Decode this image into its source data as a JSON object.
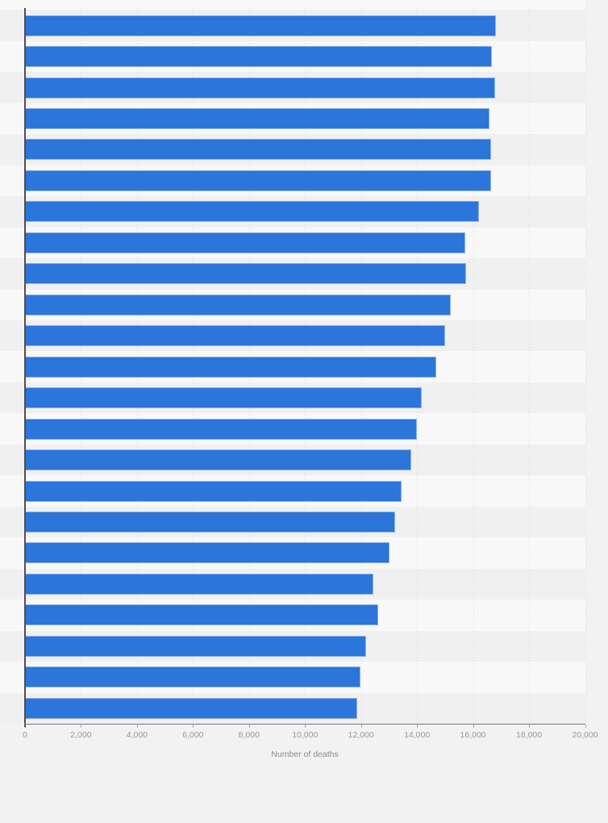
{
  "page": {
    "background_color": "#f2f2f2",
    "note": "Horizontal bar chart, category labels cropped out of view on the left"
  },
  "chart_data": {
    "type": "bar",
    "orientation": "horizontal",
    "title": "",
    "xlabel": "Number of deaths",
    "ylabel": "",
    "xlim": [
      0,
      20000
    ],
    "x_ticks": [
      0,
      2000,
      4000,
      6000,
      8000,
      10000,
      12000,
      14000,
      16000,
      18000,
      20000
    ],
    "x_tick_labels": [
      "0",
      "2,000",
      "4,000",
      "6,000",
      "8,000",
      "10,000",
      "12,000",
      "14,000",
      "16,000",
      "18,000",
      "20,000"
    ],
    "grid": "vertical-dotted",
    "legend": "none",
    "categories_visible": false,
    "values": [
      16810,
      16665,
      16780,
      16590,
      16635,
      16650,
      16225,
      15730,
      15755,
      15215,
      14995,
      14695,
      14180,
      14005,
      13805,
      13450,
      13220,
      13015,
      12440,
      12600,
      12185,
      11970,
      11865
    ],
    "colors": {
      "bar_fill": "#2b75db",
      "bar_border": "#8fb2e8",
      "stripe_odd": "#f0f0f0",
      "stripe_even": "#f8f8f8",
      "gridline": "#d7d7d7",
      "x_axis_line": "#7a7a7a",
      "y_axis_line": "#4f4f4f",
      "tick_label": "#999999",
      "axis_title": "#8a8a8a"
    }
  }
}
